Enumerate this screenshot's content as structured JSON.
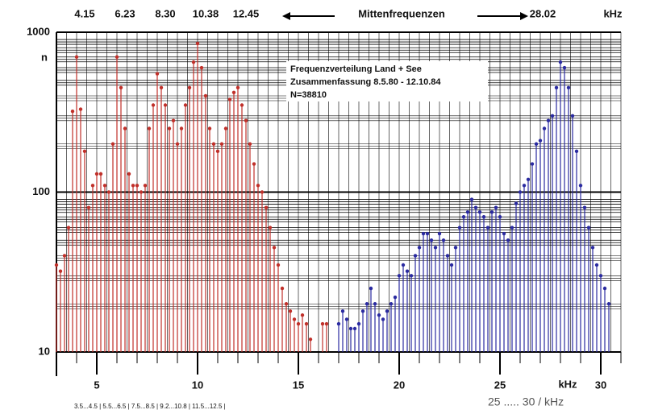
{
  "chart_data": {
    "type": "scatter",
    "top_labels": [
      "4.15",
      "6.23",
      "8.30",
      "10.38",
      "12.45"
    ],
    "top_center": "Mittenfrequenzen",
    "top_right": "28.02",
    "top_unit": "kHz",
    "y_label": "n",
    "x_unit": "kHz",
    "annotation": [
      "Frequenzverteilung Land + See",
      "Zusammenfassung  8.5.80   - 12.10.84",
      "N=38810"
    ],
    "bottom_note": "3.5...4.5 | 5.5...6.5 | 7.5...8.5 | 9.2...10.8 | 11.5...12.5 |",
    "bottom_right": "25 ..... 30  / kHz",
    "log_y": true,
    "grid": true,
    "xlim": [
      3,
      31
    ],
    "xticks": [
      5,
      10,
      15,
      20,
      25,
      30
    ],
    "ylim": [
      10,
      1000
    ],
    "yticks": [
      10,
      100,
      1000
    ],
    "series": [
      {
        "color": "#c0302a",
        "x": [
          3.0,
          3.2,
          3.4,
          3.6,
          3.8,
          4.0,
          4.2,
          4.4,
          4.6,
          4.8,
          5.0,
          5.2,
          5.4,
          5.6,
          5.8,
          6.0,
          6.2,
          6.4,
          6.6,
          6.8,
          7.0,
          7.2,
          7.4,
          7.6,
          7.8,
          8.0,
          8.2,
          8.4,
          8.6,
          8.8,
          9.0,
          9.2,
          9.4,
          9.6,
          9.8,
          10.0,
          10.2,
          10.4,
          10.6,
          10.8,
          11.0,
          11.2,
          11.4,
          11.6,
          11.8,
          12.0,
          12.2,
          12.4,
          12.6,
          12.8,
          13.0,
          13.2,
          13.4,
          13.6,
          13.8,
          14.0,
          14.2,
          14.4,
          14.6,
          14.8,
          15.0,
          15.2,
          15.4,
          15.6,
          16.2,
          16.4
        ],
        "values": [
          35,
          32,
          40,
          60,
          320,
          700,
          330,
          180,
          80,
          110,
          130,
          130,
          110,
          100,
          200,
          700,
          450,
          250,
          130,
          110,
          110,
          100,
          110,
          250,
          350,
          550,
          450,
          350,
          250,
          280,
          200,
          250,
          350,
          450,
          650,
          850,
          600,
          400,
          250,
          200,
          180,
          200,
          250,
          380,
          420,
          450,
          350,
          280,
          200,
          150,
          110,
          100,
          80,
          60,
          45,
          35,
          25,
          20,
          18,
          16,
          15,
          17,
          15,
          12,
          15,
          15
        ]
      },
      {
        "color": "#2a2aa0",
        "x": [
          17.0,
          17.2,
          17.4,
          17.6,
          17.8,
          18.0,
          18.2,
          18.4,
          18.6,
          18.8,
          19.0,
          19.2,
          19.4,
          19.6,
          19.8,
          20.0,
          20.2,
          20.4,
          20.6,
          20.8,
          21.0,
          21.2,
          21.4,
          21.6,
          21.8,
          22.0,
          22.2,
          22.4,
          22.6,
          22.8,
          23.0,
          23.2,
          23.4,
          23.6,
          23.8,
          24.0,
          24.2,
          24.4,
          24.6,
          24.8,
          25.0,
          25.2,
          25.4,
          25.6,
          25.8,
          26.0,
          26.2,
          26.4,
          26.6,
          26.8,
          27.0,
          27.2,
          27.4,
          27.6,
          27.8,
          28.0,
          28.2,
          28.4,
          28.6,
          28.8,
          29.0,
          29.2,
          29.4,
          29.6,
          29.8,
          30.0,
          30.2,
          30.4
        ],
        "values": [
          15,
          18,
          16,
          14,
          14,
          15,
          18,
          20,
          25,
          20,
          17,
          16,
          18,
          20,
          22,
          30,
          35,
          32,
          30,
          40,
          45,
          55,
          55,
          50,
          45,
          55,
          50,
          40,
          35,
          45,
          60,
          70,
          75,
          90,
          80,
          75,
          70,
          60,
          75,
          80,
          70,
          55,
          50,
          60,
          85,
          100,
          110,
          120,
          150,
          200,
          210,
          250,
          280,
          300,
          450,
          650,
          600,
          450,
          300,
          180,
          110,
          80,
          60,
          45,
          35,
          30,
          25,
          20
        ]
      }
    ]
  }
}
